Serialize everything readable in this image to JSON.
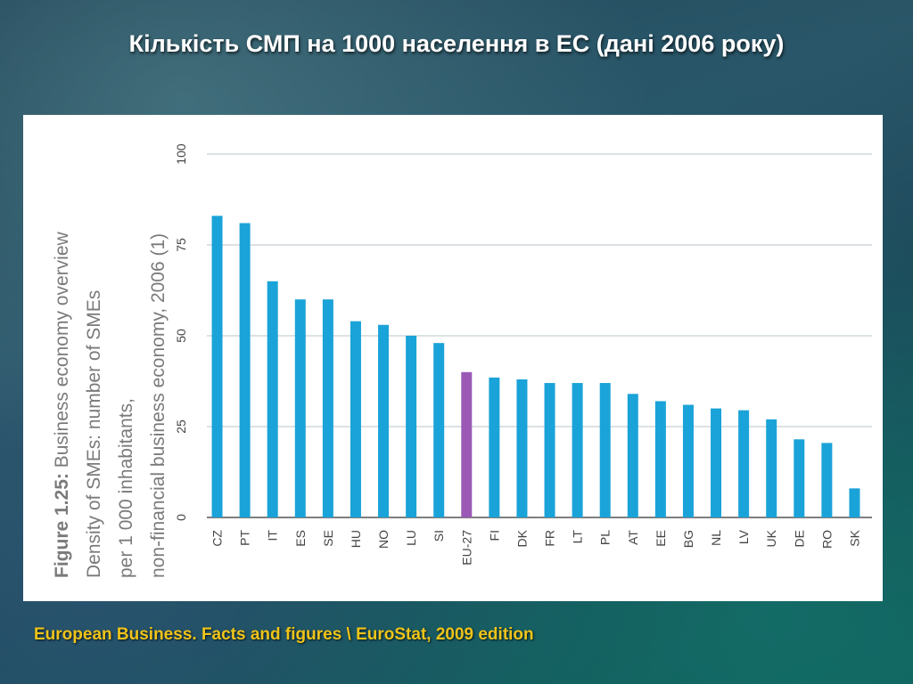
{
  "slide": {
    "title": "Кількість СМП на 1000 населення в ЕС (дані 2006 року)",
    "source": "European Business. Facts and figures \\ EuroStat, 2009 edition"
  },
  "colors": {
    "bar": "#1aa3d8",
    "highlight_bar": "#9b59b6",
    "grid": "#cfd8dc",
    "axis_text": "#444444"
  },
  "chart_data": {
    "type": "bar",
    "title_bold": "Figure 1.25:",
    "title": "Business economy overview",
    "subtitle_lines": [
      "Density of SMEs: number of SMEs",
      "per 1 000 inhabitants,",
      "non-financial business economy, 2006 (1)"
    ],
    "categories": [
      "CZ",
      "PT",
      "IT",
      "ES",
      "SE",
      "HU",
      "NO",
      "LU",
      "SI",
      "EU-27",
      "FI",
      "DK",
      "FR",
      "LT",
      "PL",
      "AT",
      "EE",
      "BG",
      "NL",
      "LV",
      "UK",
      "DE",
      "RO",
      "SK"
    ],
    "values": [
      83,
      81,
      65,
      60,
      60,
      54,
      53,
      50,
      48,
      40,
      38.5,
      38,
      37,
      37,
      37,
      34,
      32,
      31,
      30,
      29.5,
      27,
      21.5,
      20.5,
      8
    ],
    "highlight": "EU-27",
    "ylim": [
      0,
      100
    ],
    "yticks": [
      0,
      25,
      50,
      75,
      100
    ],
    "grid": true
  }
}
